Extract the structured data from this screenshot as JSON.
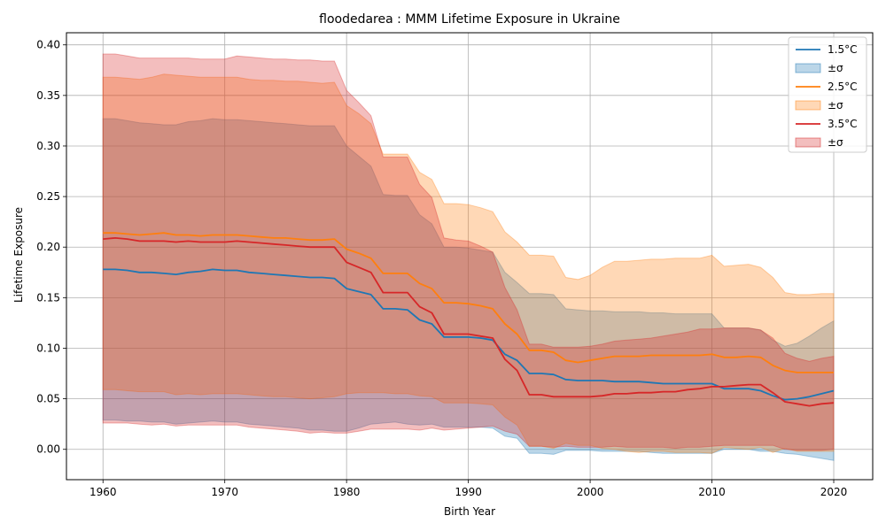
{
  "chart_data": {
    "type": "line",
    "title": "floodedarea : MMM Lifetime Exposure in Ukraine",
    "xlabel": "Birth Year",
    "ylabel": "Lifetime Exposure",
    "xlim": [
      1957,
      2023.2
    ],
    "ylim": [
      -0.03,
      0.412
    ],
    "xticks": [
      1960,
      1970,
      1980,
      1990,
      2000,
      2010,
      2020
    ],
    "yticks": [
      0.0,
      0.05,
      0.1,
      0.15,
      0.2,
      0.25,
      0.3,
      0.35,
      0.4
    ],
    "ytick_labels": [
      "0.00",
      "0.05",
      "0.10",
      "0.15",
      "0.20",
      "0.25",
      "0.30",
      "0.35",
      "0.40"
    ],
    "grid": true,
    "legend_position": "top-right",
    "x": [
      1960,
      1961,
      1962,
      1963,
      1964,
      1965,
      1966,
      1967,
      1968,
      1969,
      1970,
      1971,
      1972,
      1973,
      1974,
      1975,
      1976,
      1977,
      1978,
      1979,
      1980,
      1981,
      1982,
      1983,
      1984,
      1985,
      1986,
      1987,
      1988,
      1989,
      1990,
      1991,
      1992,
      1993,
      1994,
      1995,
      1996,
      1997,
      1998,
      1999,
      2000,
      2001,
      2002,
      2003,
      2004,
      2005,
      2006,
      2007,
      2008,
      2009,
      2010,
      2011,
      2012,
      2013,
      2014,
      2015,
      2016,
      2017,
      2018,
      2019,
      2020
    ],
    "series": [
      {
        "name": "1.5°C",
        "band_label": "±σ",
        "color": "#1f77b4",
        "band_color": "#1f77b4",
        "mean": [
          0.178,
          0.178,
          0.177,
          0.175,
          0.175,
          0.174,
          0.173,
          0.175,
          0.176,
          0.178,
          0.177,
          0.177,
          0.175,
          0.174,
          0.173,
          0.172,
          0.171,
          0.17,
          0.17,
          0.169,
          0.159,
          0.156,
          0.153,
          0.139,
          0.139,
          0.138,
          0.128,
          0.124,
          0.111,
          0.111,
          0.111,
          0.11,
          0.108,
          0.094,
          0.088,
          0.075,
          0.075,
          0.074,
          0.069,
          0.068,
          0.068,
          0.068,
          0.067,
          0.067,
          0.067,
          0.066,
          0.065,
          0.065,
          0.065,
          0.065,
          0.065,
          0.06,
          0.06,
          0.06,
          0.058,
          0.053,
          0.049,
          0.05,
          0.052,
          0.055,
          0.058
        ],
        "upper": [
          0.327,
          0.327,
          0.325,
          0.323,
          0.322,
          0.321,
          0.321,
          0.324,
          0.325,
          0.327,
          0.326,
          0.326,
          0.325,
          0.324,
          0.323,
          0.322,
          0.321,
          0.32,
          0.32,
          0.32,
          0.3,
          0.29,
          0.28,
          0.252,
          0.251,
          0.251,
          0.232,
          0.223,
          0.2,
          0.2,
          0.199,
          0.197,
          0.195,
          0.175,
          0.165,
          0.154,
          0.154,
          0.153,
          0.139,
          0.138,
          0.137,
          0.137,
          0.136,
          0.136,
          0.136,
          0.135,
          0.135,
          0.134,
          0.134,
          0.134,
          0.134,
          0.12,
          0.12,
          0.12,
          0.118,
          0.108,
          0.102,
          0.105,
          0.112,
          0.12,
          0.127
        ],
        "lower": [
          0.029,
          0.029,
          0.028,
          0.028,
          0.027,
          0.027,
          0.025,
          0.026,
          0.027,
          0.028,
          0.027,
          0.027,
          0.025,
          0.024,
          0.023,
          0.022,
          0.021,
          0.019,
          0.019,
          0.018,
          0.018,
          0.021,
          0.025,
          0.026,
          0.027,
          0.025,
          0.024,
          0.025,
          0.022,
          0.022,
          0.022,
          0.022,
          0.021,
          0.013,
          0.011,
          -0.004,
          -0.004,
          -0.005,
          -0.001,
          -0.001,
          -0.001,
          -0.002,
          -0.002,
          -0.002,
          -0.002,
          -0.003,
          -0.004,
          -0.004,
          -0.004,
          -0.004,
          -0.004,
          0.0,
          0.0,
          0.0,
          -0.002,
          -0.002,
          -0.004,
          -0.005,
          -0.007,
          -0.009,
          -0.011
        ]
      },
      {
        "name": "2.5°C",
        "band_label": "±σ",
        "color": "#ff7f0e",
        "band_color": "#ff7f0e",
        "mean": [
          0.214,
          0.214,
          0.213,
          0.212,
          0.213,
          0.214,
          0.212,
          0.212,
          0.211,
          0.212,
          0.212,
          0.212,
          0.211,
          0.21,
          0.209,
          0.209,
          0.208,
          0.207,
          0.207,
          0.208,
          0.198,
          0.194,
          0.189,
          0.174,
          0.174,
          0.174,
          0.164,
          0.159,
          0.145,
          0.145,
          0.144,
          0.142,
          0.139,
          0.124,
          0.114,
          0.098,
          0.098,
          0.096,
          0.088,
          0.086,
          0.088,
          0.09,
          0.092,
          0.092,
          0.092,
          0.093,
          0.093,
          0.093,
          0.093,
          0.093,
          0.094,
          0.091,
          0.091,
          0.092,
          0.091,
          0.083,
          0.078,
          0.076,
          0.076,
          0.076,
          0.076
        ],
        "upper": [
          0.368,
          0.368,
          0.367,
          0.366,
          0.368,
          0.371,
          0.37,
          0.369,
          0.368,
          0.368,
          0.368,
          0.368,
          0.366,
          0.365,
          0.365,
          0.364,
          0.364,
          0.363,
          0.362,
          0.363,
          0.34,
          0.332,
          0.322,
          0.292,
          0.292,
          0.292,
          0.274,
          0.267,
          0.243,
          0.243,
          0.242,
          0.239,
          0.235,
          0.215,
          0.205,
          0.192,
          0.192,
          0.191,
          0.17,
          0.168,
          0.172,
          0.18,
          0.186,
          0.186,
          0.187,
          0.188,
          0.188,
          0.189,
          0.189,
          0.189,
          0.192,
          0.181,
          0.182,
          0.183,
          0.18,
          0.17,
          0.155,
          0.153,
          0.153,
          0.154,
          0.154
        ],
        "lower": [
          0.059,
          0.059,
          0.058,
          0.057,
          0.057,
          0.057,
          0.054,
          0.055,
          0.054,
          0.055,
          0.055,
          0.055,
          0.054,
          0.053,
          0.052,
          0.052,
          0.051,
          0.05,
          0.051,
          0.052,
          0.055,
          0.056,
          0.056,
          0.056,
          0.055,
          0.055,
          0.053,
          0.052,
          0.046,
          0.046,
          0.046,
          0.045,
          0.044,
          0.032,
          0.024,
          0.003,
          0.003,
          0.001,
          0.006,
          0.004,
          0.004,
          0.001,
          0.0,
          -0.002,
          -0.003,
          -0.002,
          -0.002,
          -0.003,
          -0.003,
          -0.003,
          -0.004,
          0.002,
          0.001,
          0.0,
          0.002,
          -0.003,
          0.001,
          -0.002,
          -0.002,
          -0.002,
          -0.002
        ]
      },
      {
        "name": "3.5°C",
        "band_label": "±σ",
        "color": "#d62728",
        "band_color": "#d62728",
        "mean": [
          0.208,
          0.209,
          0.208,
          0.206,
          0.206,
          0.206,
          0.205,
          0.206,
          0.205,
          0.205,
          0.205,
          0.206,
          0.205,
          0.204,
          0.203,
          0.202,
          0.201,
          0.2,
          0.2,
          0.2,
          0.185,
          0.18,
          0.175,
          0.155,
          0.155,
          0.155,
          0.141,
          0.135,
          0.114,
          0.114,
          0.114,
          0.112,
          0.11,
          0.089,
          0.078,
          0.054,
          0.054,
          0.052,
          0.052,
          0.052,
          0.052,
          0.053,
          0.055,
          0.055,
          0.056,
          0.056,
          0.057,
          0.057,
          0.059,
          0.06,
          0.062,
          0.062,
          0.063,
          0.064,
          0.064,
          0.056,
          0.047,
          0.045,
          0.043,
          0.045,
          0.046
        ],
        "upper": [
          0.391,
          0.391,
          0.389,
          0.387,
          0.387,
          0.387,
          0.387,
          0.387,
          0.386,
          0.386,
          0.386,
          0.389,
          0.388,
          0.387,
          0.386,
          0.386,
          0.385,
          0.385,
          0.384,
          0.384,
          0.355,
          0.343,
          0.33,
          0.289,
          0.289,
          0.289,
          0.262,
          0.249,
          0.209,
          0.207,
          0.206,
          0.201,
          0.195,
          0.16,
          0.138,
          0.104,
          0.104,
          0.101,
          0.101,
          0.101,
          0.102,
          0.104,
          0.107,
          0.108,
          0.109,
          0.11,
          0.112,
          0.114,
          0.116,
          0.119,
          0.119,
          0.12,
          0.12,
          0.12,
          0.118,
          0.11,
          0.095,
          0.09,
          0.087,
          0.09,
          0.092
        ],
        "lower": [
          0.026,
          0.026,
          0.026,
          0.025,
          0.024,
          0.025,
          0.023,
          0.024,
          0.024,
          0.024,
          0.024,
          0.024,
          0.022,
          0.021,
          0.02,
          0.019,
          0.018,
          0.016,
          0.017,
          0.016,
          0.016,
          0.018,
          0.02,
          0.02,
          0.02,
          0.02,
          0.019,
          0.021,
          0.019,
          0.02,
          0.021,
          0.022,
          0.023,
          0.018,
          0.015,
          0.003,
          0.003,
          0.002,
          0.003,
          0.002,
          0.002,
          0.002,
          0.003,
          0.002,
          0.002,
          0.002,
          0.002,
          0.001,
          0.002,
          0.002,
          0.003,
          0.004,
          0.004,
          0.004,
          0.004,
          0.004,
          0.0,
          -0.001,
          -0.001,
          -0.001,
          0.0
        ]
      }
    ]
  }
}
